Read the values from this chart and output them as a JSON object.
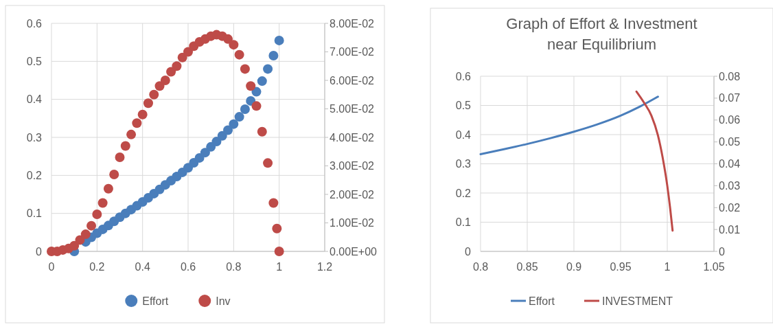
{
  "chart_data": [
    {
      "type": "scatter",
      "marker": "circle",
      "grid": true,
      "legend": "bottom",
      "xlim": [
        0,
        1.2
      ],
      "xticks": [
        0,
        0.2,
        0.4,
        0.6,
        0.8,
        1,
        1.2
      ],
      "ylim": [
        0,
        0.6
      ],
      "yticks": [
        0,
        0.1,
        0.2,
        0.3,
        0.4,
        0.5,
        0.6
      ],
      "y2lim": [
        0,
        0.08
      ],
      "y2ticks": [
        {
          "value": 0,
          "label": "0.00E+00"
        },
        {
          "value": 0.01,
          "label": "1.00E-02"
        },
        {
          "value": 0.02,
          "label": "2.00E-02"
        },
        {
          "value": 0.03,
          "label": "3.00E-02"
        },
        {
          "value": 0.04,
          "label": "4.00E-02"
        },
        {
          "value": 0.05,
          "label": "5.00E-02"
        },
        {
          "value": 0.06,
          "label": "6.00E-02"
        },
        {
          "value": 0.07,
          "label": "7.00E-02"
        },
        {
          "value": 0.08,
          "label": "8.00E-02"
        }
      ],
      "series": [
        {
          "name": "Effort",
          "color": "#4a7ebb",
          "x": [
            0.1,
            0.15,
            0.175,
            0.2,
            0.225,
            0.25,
            0.275,
            0.3,
            0.325,
            0.35,
            0.375,
            0.4,
            0.425,
            0.45,
            0.475,
            0.5,
            0.525,
            0.55,
            0.575,
            0.6,
            0.625,
            0.65,
            0.675,
            0.7,
            0.725,
            0.75,
            0.775,
            0.8,
            0.825,
            0.85,
            0.875,
            0.9,
            0.925,
            0.95,
            0.975,
            1.0
          ],
          "values": [
            0,
            0.025,
            0.037,
            0.048,
            0.058,
            0.068,
            0.079,
            0.09,
            0.1,
            0.11,
            0.12,
            0.13,
            0.141,
            0.152,
            0.163,
            0.175,
            0.186,
            0.197,
            0.208,
            0.22,
            0.233,
            0.246,
            0.26,
            0.275,
            0.289,
            0.304,
            0.319,
            0.335,
            0.354,
            0.374,
            0.396,
            0.42,
            0.448,
            0.48,
            0.515,
            0.555
          ]
        },
        {
          "name": "Inv",
          "color": "#be4b48",
          "axis": "y2",
          "x": [
            0,
            0.025,
            0.05,
            0.075,
            0.1,
            0.125,
            0.15,
            0.175,
            0.2,
            0.225,
            0.25,
            0.275,
            0.3,
            0.325,
            0.35,
            0.375,
            0.4,
            0.425,
            0.45,
            0.475,
            0.5,
            0.525,
            0.55,
            0.575,
            0.6,
            0.625,
            0.65,
            0.675,
            0.7,
            0.725,
            0.75,
            0.775,
            0.8,
            0.825,
            0.85,
            0.875,
            0.9,
            0.925,
            0.95,
            0.975,
            0.99,
            1.0
          ],
          "values": [
            0,
            0,
            0.0005,
            0.001,
            0.002,
            0.004,
            0.006,
            0.009,
            0.013,
            0.017,
            0.022,
            0.027,
            0.033,
            0.037,
            0.041,
            0.045,
            0.048,
            0.052,
            0.055,
            0.058,
            0.06,
            0.063,
            0.065,
            0.068,
            0.07,
            0.072,
            0.0735,
            0.0745,
            0.0755,
            0.076,
            0.0755,
            0.0745,
            0.0725,
            0.069,
            0.064,
            0.058,
            0.051,
            0.042,
            0.031,
            0.017,
            0.008,
            0
          ]
        }
      ]
    },
    {
      "type": "line",
      "title": "Graph of Effort & Investment near Equilibrium",
      "grid": true,
      "legend": "bottom",
      "xlim": [
        0.8,
        1.05
      ],
      "xticks": [
        0.8,
        0.85,
        0.9,
        0.95,
        1,
        1.05
      ],
      "ylim": [
        0,
        0.6
      ],
      "yticks": [
        0,
        0.1,
        0.2,
        0.3,
        0.4,
        0.5,
        0.6
      ],
      "y2lim": [
        0,
        0.08
      ],
      "y2ticks": [
        0,
        0.01,
        0.02,
        0.03,
        0.04,
        0.05,
        0.06,
        0.07,
        0.08
      ],
      "series": [
        {
          "name": "Effort",
          "color": "#4a7ebb",
          "x": [
            0.8,
            0.825,
            0.85,
            0.875,
            0.9,
            0.925,
            0.95,
            0.97,
            0.99
          ],
          "values": [
            0.333,
            0.35,
            0.368,
            0.388,
            0.41,
            0.435,
            0.465,
            0.495,
            0.53
          ]
        },
        {
          "name": "INVESTMENT",
          "color": "#be4b48",
          "axis": "y2",
          "x": [
            0.967,
            0.975,
            0.983,
            0.99,
            0.995,
            1.0,
            1.003,
            1.0057
          ],
          "values": [
            0.073,
            0.068,
            0.062,
            0.053,
            0.043,
            0.03,
            0.02,
            0.0095
          ]
        }
      ]
    }
  ]
}
